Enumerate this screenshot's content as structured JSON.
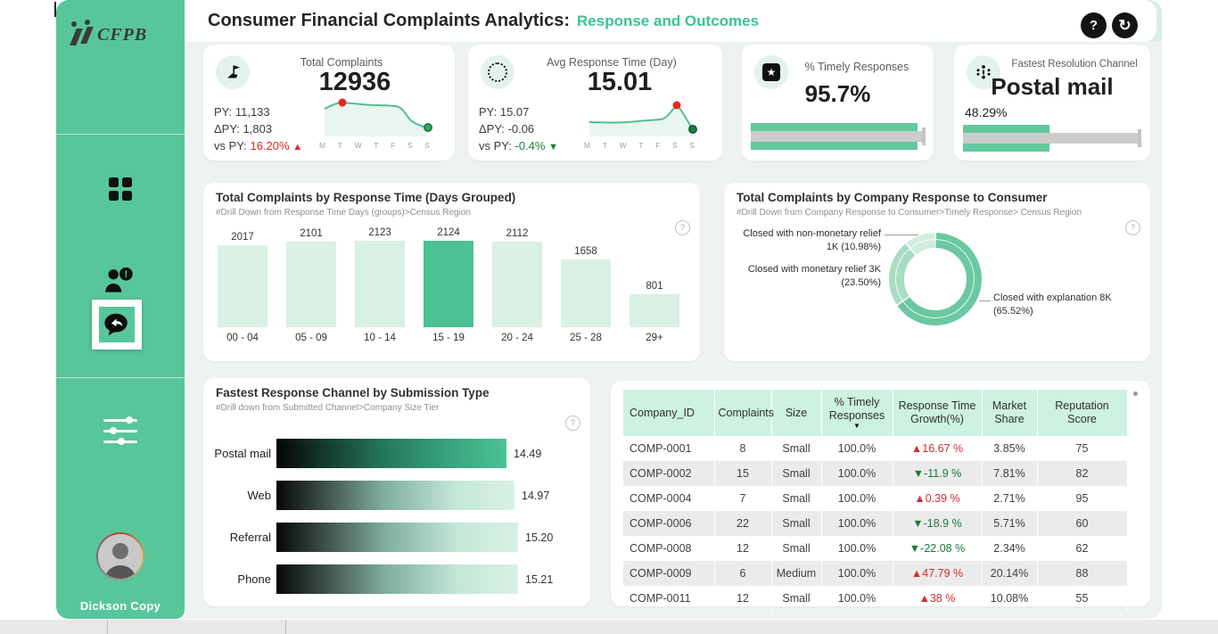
{
  "app": {
    "title": "Consumer Financial Complaints Analytics:",
    "subtitle": "Response and Outcomes",
    "help_glyph": "?",
    "refresh_glyph": "↻",
    "panel_help_glyph": "?"
  },
  "sidebar": {
    "brand": "CFPB",
    "user_name": "Dickson Copy",
    "icons": [
      "grid-icon",
      "person-alert-icon",
      "chat-reply-icon",
      "sliders-icon",
      "avatar"
    ]
  },
  "kpi": {
    "card1": {
      "label": "Total Complaints",
      "value": "12936",
      "py": "PY: 11,133",
      "dpy": "ΔPY: 1,803",
      "vs_prefix": "vs PY:",
      "vs_value": "16.20%",
      "vs_arrow": "▲"
    },
    "card2": {
      "label": "Avg Response Time (Day)",
      "value": "15.01",
      "py": "PY: 15.07",
      "dpy": "ΔPY: -0.06",
      "vs_prefix": "vs PY:",
      "vs_value": "-0.4%",
      "vs_arrow": "▼"
    },
    "card3": {
      "label": "% Timely Responses",
      "value": "95.7%",
      "bar_pct": 95.7
    },
    "card4": {
      "label": "Fastest Resolution Channel",
      "value": "Postal mail",
      "sub_value": "48.29%",
      "bar_pct": 48.29
    }
  },
  "chart_data": [
    {
      "id": "complaints_spark",
      "type": "line",
      "title": "Total Complaints",
      "value": 12936,
      "py": 11133,
      "delta_py": 1803,
      "vs_py": "16.20%",
      "x": [
        "M",
        "T",
        "W",
        "T",
        "F",
        "S",
        "S"
      ]
    },
    {
      "id": "response_time_spark",
      "type": "line",
      "title": "Avg Response Time (Day)",
      "value": 15.01,
      "py": 15.07,
      "delta_py": -0.06,
      "vs_py": "-0.4%",
      "x": [
        "M",
        "T",
        "W",
        "T",
        "F",
        "S",
        "S"
      ]
    },
    {
      "id": "response_time_bars",
      "type": "bar",
      "title": "Total Complaints by Response Time (Days Grouped)",
      "subtitle": "#Drill Down from Response Time Days (groups)>Census Region",
      "categories": [
        "00 - 04",
        "05 - 09",
        "10 - 14",
        "15 - 19",
        "20 - 24",
        "25 - 28",
        "29+"
      ],
      "values": [
        2017,
        2101,
        2123,
        2124,
        2112,
        1658,
        801
      ],
      "highlight_index": 3,
      "bar_color": "#d9f0e4",
      "highlight_color": "#4ac294",
      "ylim": [
        0,
        2124
      ]
    },
    {
      "id": "company_response",
      "type": "pie",
      "title": "Total Complaints by Company Response to Consumer",
      "subtitle": "#Drill Down from Company Response to Consumer>Timely Response> Census Region",
      "slices": [
        {
          "label": "Closed with explanation",
          "value": "8K",
          "pct": 65.52,
          "color": "#6bc8a0"
        },
        {
          "label": "Closed with monetary relief",
          "value": "3K",
          "pct": 23.5,
          "color": "#a8ddc4"
        },
        {
          "label": "Closed with non-monetary relief",
          "value": "1K",
          "pct": 10.98,
          "color": "#d0eddd"
        }
      ],
      "labels": [
        {
          "line1": "Closed with non-monetary relief",
          "line2": "1K (10.98%)"
        },
        {
          "line1": "Closed with monetary relief 3K",
          "line2": "(23.50%)"
        },
        {
          "line1": "Closed with explanation 8K",
          "line2": "(65.52%)"
        }
      ]
    },
    {
      "id": "channel_response",
      "type": "bar",
      "orientation": "horizontal",
      "title": "Fastest Response Channel by Submission Type",
      "subtitle": "#Drill down from Submitted Channel>Company Size Tier",
      "categories": [
        "Postal mail",
        "Web",
        "Referral",
        "Phone"
      ],
      "values": [
        14.49,
        14.97,
        15.2,
        15.21
      ],
      "values_display": [
        "14.49",
        "14.97",
        "15.20",
        "15.21"
      ]
    }
  ],
  "table": {
    "columns": [
      {
        "label": "Company_ID"
      },
      {
        "label": "Complaints"
      },
      {
        "label": "Size"
      },
      {
        "label": "% Timely\nResponses",
        "sorted": true
      },
      {
        "label": "Response Time\nGrowth(%)"
      },
      {
        "label": "Market\nShare"
      },
      {
        "label": "Reputation Score"
      }
    ],
    "rows": [
      {
        "cells": [
          "COMP-0001",
          "8",
          "Small",
          "100.0%",
          "▲16.67 %",
          "3.85%",
          "75"
        ],
        "growth": "up"
      },
      {
        "cells": [
          "COMP-0002",
          "15",
          "Small",
          "100.0%",
          "▼-11.9 %",
          "7.81%",
          "82"
        ],
        "growth": "down"
      },
      {
        "cells": [
          "COMP-0004",
          "7",
          "Small",
          "100.0%",
          "▲0.39 %",
          "2.71%",
          "95"
        ],
        "growth": "up"
      },
      {
        "cells": [
          "COMP-0006",
          "22",
          "Small",
          "100.0%",
          "▼-18.9 %",
          "5.71%",
          "60"
        ],
        "growth": "down"
      },
      {
        "cells": [
          "COMP-0008",
          "12",
          "Small",
          "100.0%",
          "▼-22.08 %",
          "2.34%",
          "62"
        ],
        "growth": "down"
      },
      {
        "cells": [
          "COMP-0009",
          "6",
          "Medium",
          "100.0%",
          "▲47.79 %",
          "20.14%",
          "88"
        ],
        "growth": "up"
      },
      {
        "cells": [
          "COMP-0011",
          "12",
          "Small",
          "100.0%",
          "▲38 %",
          "10.08%",
          "55"
        ],
        "growth": "up"
      }
    ]
  },
  "colors": {
    "sidebar_green": "#58c69b",
    "title_green": "#3ec28f",
    "spark_green": "#53bd92",
    "bar_light": "#d9f0e4",
    "bar_highlight": "#4ac294",
    "donut": [
      "#6bc8a0",
      "#a8ddc4",
      "#d0eddd"
    ],
    "table_header": "#cdf2e1",
    "row_alt": "#ebebeb",
    "bad_red": "#cf2e2e",
    "good_green": "#1a7a33"
  }
}
